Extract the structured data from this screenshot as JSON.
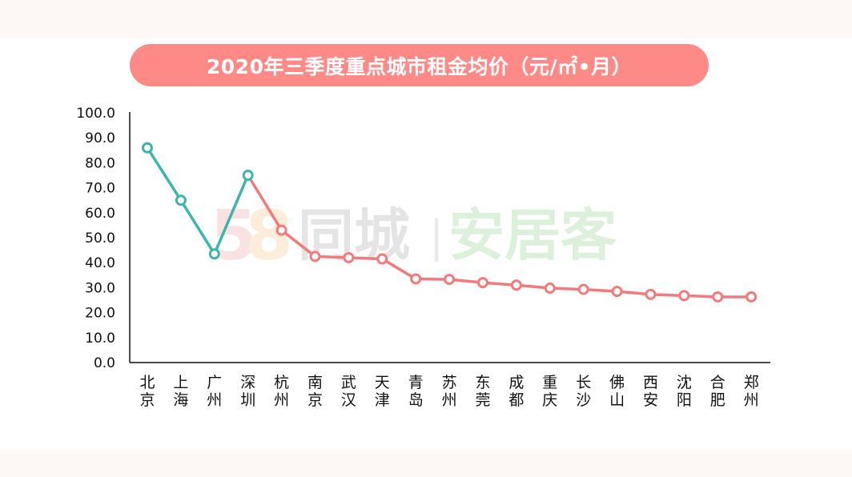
{
  "title": "2020年三季度重点城市租金均价（元/㎡•月）",
  "watermark": {
    "num1": "5",
    "num2": "8",
    "brand": "同城",
    "divider": "|",
    "product": "安居客"
  },
  "colors": {
    "title_bg": "#fd8a86",
    "highlight_series": "#3cb5ac",
    "main_series": "#f27a7a",
    "marker_fill": "#ffffff"
  },
  "chart_data": {
    "type": "line",
    "title": "2020年三季度重点城市租金均价（元/㎡•月）",
    "categories": [
      "北京",
      "上海",
      "广州",
      "深圳",
      "杭州",
      "南京",
      "武汉",
      "天津",
      "青岛",
      "苏州",
      "东莞",
      "成都",
      "重庆",
      "长沙",
      "佛山",
      "西安",
      "沈阳",
      "合肥",
      "郑州"
    ],
    "values": [
      86.0,
      65.0,
      43.5,
      75.0,
      53.0,
      42.5,
      42.0,
      41.5,
      33.5,
      33.3,
      32.0,
      31.0,
      29.8,
      29.3,
      28.5,
      27.3,
      26.8,
      26.3,
      26.3
    ],
    "highlight_count": 4,
    "ylim": [
      0,
      100
    ],
    "yticks": [
      "0.0",
      "10.0",
      "20.0",
      "30.0",
      "40.0",
      "50.0",
      "60.0",
      "70.0",
      "80.0",
      "90.0",
      "100.0"
    ],
    "grid": false,
    "legend": "none"
  }
}
